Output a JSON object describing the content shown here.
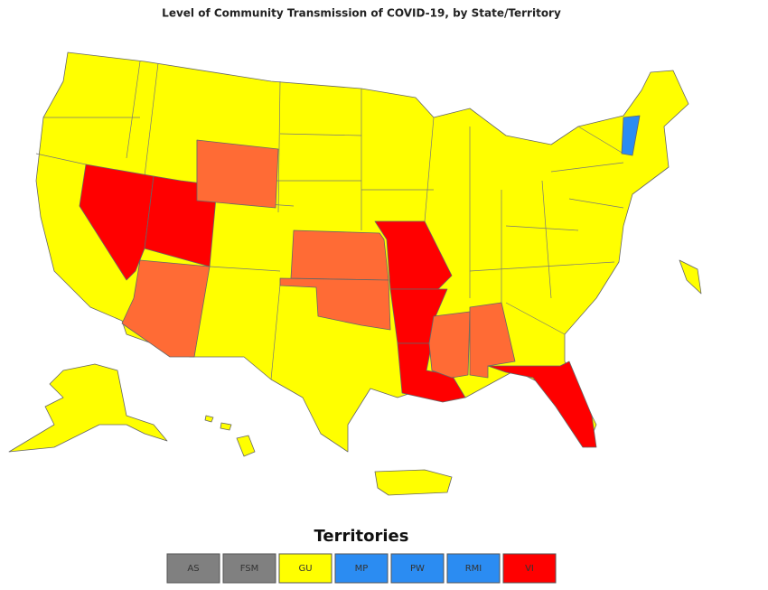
{
  "title": "Level of Community Transmission of COVID-19, by State/Territory",
  "territories": {
    "title": "Territories",
    "items": [
      {
        "label": "AS",
        "color": "#808080"
      },
      {
        "label": "FSM",
        "color": "#808080"
      },
      {
        "label": "GU",
        "color": "#ffff00"
      },
      {
        "label": "MP",
        "color": "#2b8cf2"
      },
      {
        "label": "PW",
        "color": "#2b8cf2"
      },
      {
        "label": "RMI",
        "color": "#2b8cf2"
      },
      {
        "label": "VI",
        "color": "#ff0000"
      }
    ]
  }
}
